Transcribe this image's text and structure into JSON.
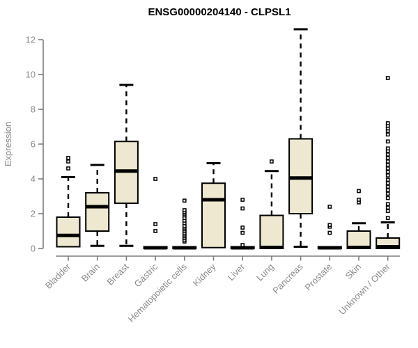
{
  "chart_data": {
    "type": "boxplot",
    "title": "ENSG00000204140 - CLPSL1",
    "ylabel": "Expression",
    "xlabel": "",
    "ylim": [
      0,
      12.8
    ],
    "y_ticks": [
      0,
      2,
      4,
      6,
      8,
      10,
      12
    ],
    "grid": false,
    "legend": "none",
    "colors": {
      "box_fill": "#ede8cf",
      "box_stroke": "#000000",
      "median": "#000000",
      "whisker": "#000000",
      "axis_line": "#7d7d7d",
      "axis_text": "#8a8a8a",
      "title_text": "#000000",
      "outlier_stroke": "#000000",
      "outlier_fill": "#ffffff"
    },
    "categories": [
      "Bladder",
      "Brain",
      "Breast",
      "Gastric",
      "Hematopoietic cells",
      "Kidney",
      "Liver",
      "Lung",
      "Pancreas",
      "Prostate",
      "Skin",
      "Unknown / Other"
    ],
    "boxes": [
      {
        "label": "Bladder",
        "low": 0.1,
        "q1": 0.1,
        "median": 0.75,
        "q3": 1.8,
        "high": 4.1,
        "outliers": [
          4.6,
          5.0,
          5.2
        ]
      },
      {
        "label": "Brain",
        "low": 0.15,
        "q1": 1.0,
        "median": 2.4,
        "q3": 3.2,
        "high": 4.8,
        "outliers": []
      },
      {
        "label": "Breast",
        "low": 0.15,
        "q1": 2.6,
        "median": 4.45,
        "q3": 6.15,
        "high": 9.4,
        "outliers": []
      },
      {
        "label": "Gastric",
        "low": 0.0,
        "q1": 0.0,
        "median": 0.04,
        "q3": 0.1,
        "high": 0.1,
        "outliers": [
          1.0,
          1.4,
          4.0
        ]
      },
      {
        "label": "Hematopoietic cells",
        "low": 0.0,
        "q1": 0.0,
        "median": 0.04,
        "q3": 0.1,
        "high": 0.1,
        "outliers": [
          0.4,
          0.5,
          0.6,
          0.7,
          0.8,
          0.9,
          1.0,
          1.1,
          1.2,
          1.3,
          1.45,
          1.6,
          1.75,
          1.9,
          2.0,
          2.1,
          2.2,
          2.75
        ]
      },
      {
        "label": "Kidney",
        "low": 0.05,
        "q1": 0.05,
        "median": 2.8,
        "q3": 3.75,
        "high": 4.9,
        "outliers": []
      },
      {
        "label": "Liver",
        "low": 0.0,
        "q1": 0.0,
        "median": 0.04,
        "q3": 0.1,
        "high": 0.1,
        "outliers": [
          0.2,
          0.9,
          1.2,
          2.3,
          2.8
        ]
      },
      {
        "label": "Lung",
        "low": 0.0,
        "q1": 0.0,
        "median": 0.06,
        "q3": 1.9,
        "high": 4.45,
        "outliers": [
          5.0
        ]
      },
      {
        "label": "Pancreas",
        "low": 0.1,
        "q1": 2.0,
        "median": 4.05,
        "q3": 6.3,
        "high": 12.6,
        "outliers": []
      },
      {
        "label": "Prostate",
        "low": 0.0,
        "q1": 0.0,
        "median": 0.04,
        "q3": 0.1,
        "high": 0.1,
        "outliers": [
          0.9,
          1.25,
          1.35,
          2.4
        ]
      },
      {
        "label": "Skin",
        "low": 0.0,
        "q1": 0.0,
        "median": 0.06,
        "q3": 1.0,
        "high": 1.45,
        "outliers": [
          2.65,
          2.8,
          3.3
        ]
      },
      {
        "label": "Unknown / Other",
        "low": 0.0,
        "q1": 0.0,
        "median": 0.1,
        "q3": 0.6,
        "high": 1.5,
        "outliers": [
          1.75,
          2.15,
          2.35,
          2.55,
          2.9,
          3.15,
          3.35,
          3.55,
          3.75,
          3.95,
          4.2,
          4.4,
          4.6,
          4.8,
          5.0,
          5.2,
          5.4,
          5.6,
          5.75,
          6.15,
          6.55,
          6.75,
          6.9,
          7.05,
          7.2,
          9.8
        ]
      }
    ]
  }
}
